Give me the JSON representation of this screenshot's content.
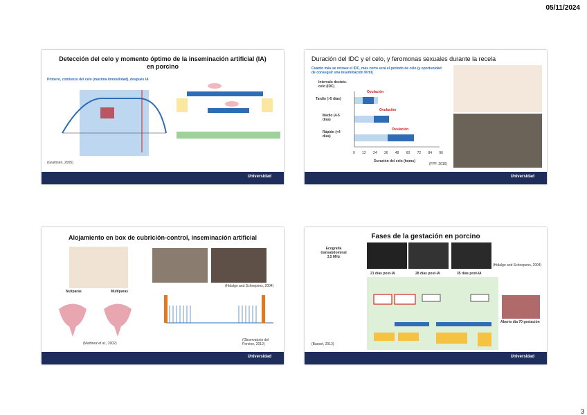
{
  "header": {
    "date": "05/11/2024"
  },
  "slides": [
    {
      "title": "Detección del celo y momento óptimo de la inseminación artificial (IA) en porcino",
      "subtitle": "Primero, comienzo del celo (máxima inmovilidad), después IA",
      "reference": "(Gramsen, 2005)",
      "footer": "Universidad"
    },
    {
      "title": "Duración del IDC y el celo, y feromonas sexuales durante la recela",
      "subtitle": "Cuanto más se retrase el IDC, más corto será el periodo de celo (y oportunidad de conseguir una inseminación fértil)",
      "axis_title": "Intervalo destete-celo (IDC)",
      "groups": [
        "Tardío (>5 días)",
        "Medio (4-5 días)",
        "Rápido (<4 días)"
      ],
      "marker": "Ovulación",
      "ticks": [
        "0",
        "12",
        "24",
        "36",
        "48",
        "60",
        "72",
        "84",
        "96"
      ],
      "x_title": "Duración del celo (horas)",
      "reference": "(FPF, 2016)",
      "footer": "Universidad"
    },
    {
      "title": "Alojamiento en box de cubrición-control, inseminación artificial",
      "labels": [
        "Nulíparas",
        "Multíparas"
      ],
      "references": [
        "(Hidalgo and Scheepens, 2004)",
        "(Martinez et al., 2002)",
        "(Observatorio del Porcino, 2012)"
      ],
      "footer": "Universidad"
    },
    {
      "title": "Fases de la gestación en porcino",
      "method": "Ecografía transabdominal 3,5 MHz",
      "days": [
        "21 días post-IA",
        "28 días post-IA",
        "35 días post-IA"
      ],
      "references": [
        "(Hidalgo and Scheepens, 2004)",
        "(Basset, 2013)"
      ],
      "caption": "Aborto día 70 gestación",
      "footer": "Universidad"
    }
  ],
  "page": {
    "number": "3"
  }
}
